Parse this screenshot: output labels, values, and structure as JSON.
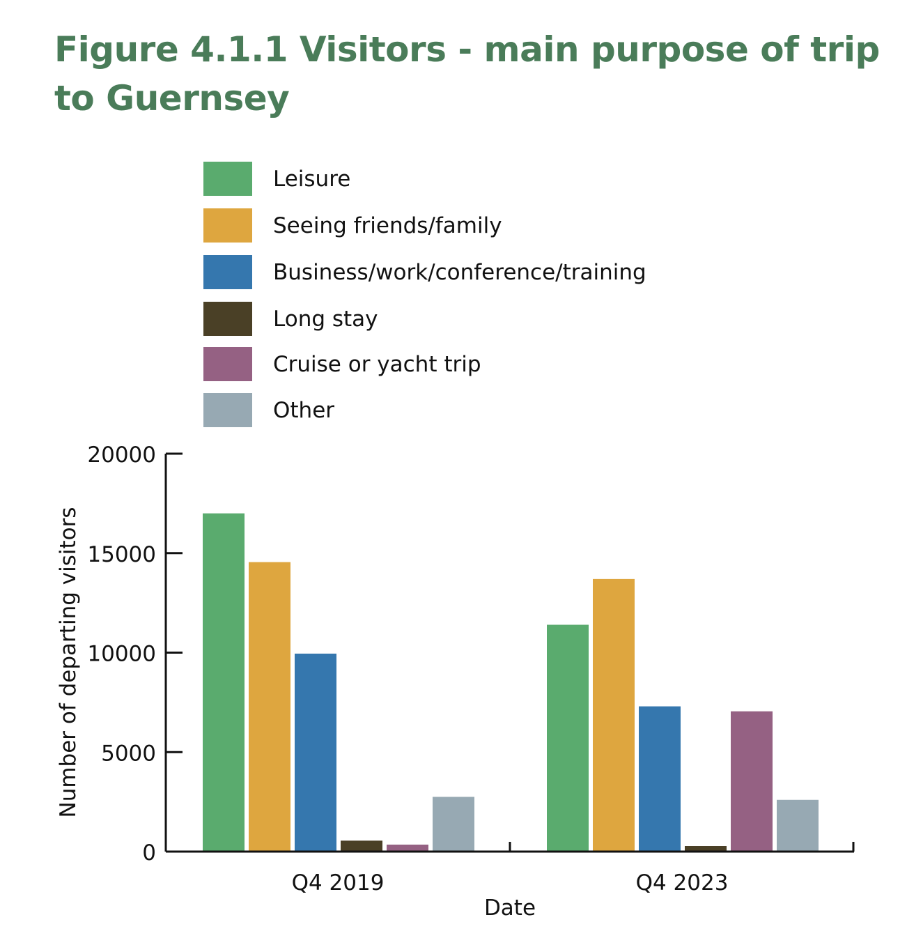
{
  "chart_data": {
    "type": "bar",
    "title": "Figure 4.1.1 Visitors - main purpose of trip to Guernsey",
    "xlabel": "Date",
    "ylabel": "Number of departing visitors",
    "categories": [
      "Q4 2019",
      "Q4 2023"
    ],
    "ylim": [
      0,
      20000
    ],
    "yticks": [
      "0",
      "5000",
      "10000",
      "15000",
      "20000"
    ],
    "grid": false,
    "legend_position": "top",
    "series": [
      {
        "name": "Leisure",
        "color": "#5aab6e",
        "values": [
          17000,
          11400
        ]
      },
      {
        "name": "Seeing friends/family",
        "color": "#dea63f",
        "values": [
          14550,
          13700
        ]
      },
      {
        "name": "Business/work/conference/training",
        "color": "#3577ae",
        "values": [
          9950,
          7300
        ]
      },
      {
        "name": "Long stay",
        "color": "#4a4026",
        "values": [
          550,
          280
        ]
      },
      {
        "name": "Cruise or yacht trip",
        "color": "#956183",
        "values": [
          350,
          7050
        ]
      },
      {
        "name": "Other",
        "color": "#97a9b3",
        "values": [
          2750,
          2600
        ]
      }
    ]
  }
}
